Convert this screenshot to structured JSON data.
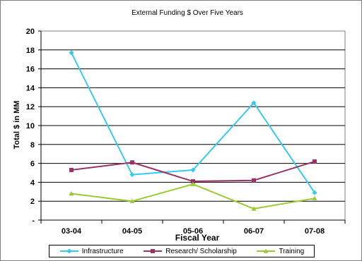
{
  "chart_data": {
    "type": "line",
    "title": "External Funding $ Over Five Years",
    "xlabel": "Fiscal Year",
    "ylabel": "Total $ in MM",
    "categories": [
      "03-04",
      "04-05",
      "05-06",
      "06-07",
      "07-08"
    ],
    "ylim": [
      0,
      20
    ],
    "yticks": [
      "-",
      "2",
      "4",
      "6",
      "8",
      "10",
      "12",
      "14",
      "16",
      "18",
      "20"
    ],
    "grid": true,
    "legend_position": "bottom",
    "series": [
      {
        "name": "Infrastructure",
        "values": [
          17.7,
          4.8,
          5.3,
          12.4,
          2.9
        ],
        "color": "#33ccee",
        "marker": "diamond"
      },
      {
        "name": "Research/ Scholarship",
        "values": [
          5.3,
          6.1,
          4.1,
          4.2,
          6.2
        ],
        "color": "#993366",
        "marker": "square"
      },
      {
        "name": "Training",
        "values": [
          2.8,
          2.0,
          3.8,
          1.2,
          2.3
        ],
        "color": "#99cc33",
        "marker": "triangle"
      }
    ]
  }
}
